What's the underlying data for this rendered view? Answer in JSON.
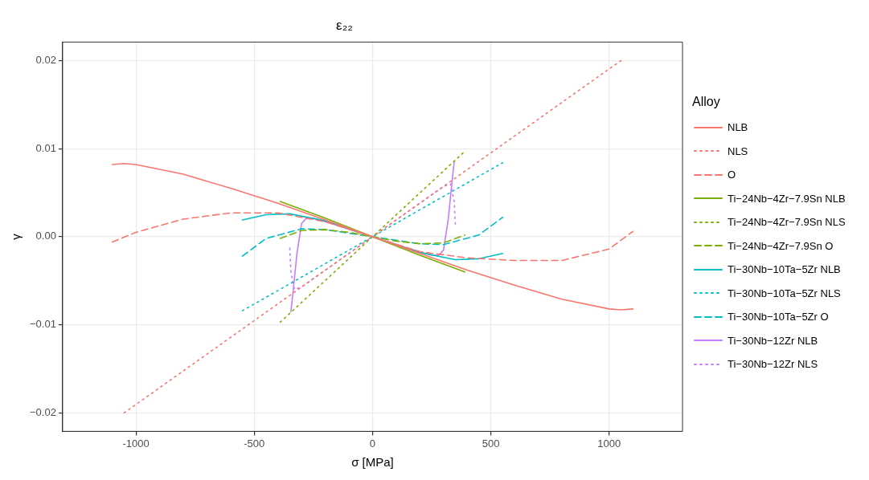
{
  "chart_data": {
    "type": "line",
    "title": "ε₂₂",
    "xlabel": "σ [MPa]",
    "ylabel": "γ",
    "legend_title": "Alloy",
    "legend": "right",
    "grid": true,
    "marker": "none",
    "xlim": [
      -1310,
      1310
    ],
    "xticks": [
      -1000,
      -500,
      0,
      500,
      1000
    ],
    "ylim": [
      -0.0221,
      0.0221
    ],
    "yticks": [
      {
        "value": -0.02,
        "label": "−0.02"
      },
      {
        "value": -0.01,
        "label": "−0.01"
      },
      {
        "value": 0,
        "label": "0.00"
      },
      {
        "value": 0.01,
        "label": "0.01"
      },
      {
        "value": 0.02,
        "label": "0.02"
      }
    ],
    "series": [
      {
        "name": "NLB",
        "color": "#f8766d",
        "line_style": "solid",
        "x": [
          -1100,
          -1050,
          -1000,
          -800,
          -600,
          -400,
          -200,
          0,
          200,
          400,
          600,
          800,
          1000,
          1050,
          1100
        ],
        "values": [
          0.0082,
          0.0083,
          0.0082,
          0.0071,
          0.0055,
          0.0038,
          0.0019,
          0,
          -0.0019,
          -0.0038,
          -0.0055,
          -0.0071,
          -0.0082,
          -0.0083,
          -0.0082
        ]
      },
      {
        "name": "NLS",
        "color": "#f8766d",
        "line_style": "dotted",
        "x": [
          -1050,
          0,
          1050
        ],
        "values": [
          -0.02,
          0,
          0.02
        ]
      },
      {
        "name": "O",
        "color": "#f8766d",
        "line_style": "dashed",
        "x": [
          -1100,
          -1000,
          -800,
          -600,
          -400,
          -200,
          0,
          200,
          400,
          600,
          800,
          1000,
          1100
        ],
        "values": [
          -0.0006,
          0.0005,
          0.002,
          0.0027,
          0.0027,
          0.0017,
          0,
          -0.0017,
          -0.0024,
          -0.0027,
          -0.0027,
          -0.0014,
          0.0006
        ]
      },
      {
        "name": "Ti−24Nb−4Zr−7.9Sn NLB",
        "color": "#7cae00",
        "line_style": "solid",
        "x": [
          -390,
          -200,
          0,
          200,
          390
        ],
        "values": [
          0.004,
          0.0021,
          0,
          -0.0021,
          -0.004
        ]
      },
      {
        "name": "Ti−24Nb−4Zr−7.9Sn NLS",
        "color": "#7cae00",
        "line_style": "dotted",
        "x": [
          -390,
          0,
          390
        ],
        "values": [
          -0.0097,
          0,
          0.0097
        ]
      },
      {
        "name": "Ti−24Nb−4Zr−7.9Sn O",
        "color": "#7cae00",
        "line_style": "dashed",
        "x": [
          -390,
          -300,
          -200,
          -100,
          0,
          100,
          200,
          300,
          390
        ],
        "values": [
          -0.0002,
          0.0007,
          0.0008,
          0.0005,
          0,
          -0.0005,
          -0.0008,
          -0.0007,
          0.0002
        ]
      },
      {
        "name": "Ti−30Nb−10Ta−5Zr NLB",
        "color": "#00bfc4",
        "line_style": "solid",
        "x": [
          -550,
          -450,
          -350,
          -200,
          0,
          200,
          350,
          450,
          550
        ],
        "values": [
          0.0019,
          0.0025,
          0.0026,
          0.0018,
          0,
          -0.0018,
          -0.0026,
          -0.0025,
          -0.0019
        ]
      },
      {
        "name": "Ti−30Nb−10Ta−5Zr NLS",
        "color": "#00bfc4",
        "line_style": "dotted",
        "x": [
          -550,
          0,
          550
        ],
        "values": [
          -0.0084,
          0,
          0.0084
        ]
      },
      {
        "name": "Ti−30Nb−10Ta−5Zr O",
        "color": "#00bfc4",
        "line_style": "dashed",
        "x": [
          -550,
          -450,
          -300,
          -200,
          0,
          200,
          300,
          450,
          550
        ],
        "values": [
          -0.0022,
          -0.0002,
          0.0009,
          0.0008,
          0,
          -0.0008,
          -0.0009,
          0.0002,
          0.0022
        ]
      },
      {
        "name": "Ti−30Nb−12Zr NLB",
        "color": "#c77cff",
        "line_style": "solid",
        "x": [
          -345,
          -335,
          -320,
          -300,
          -280,
          -250,
          -150,
          0,
          150,
          250,
          280,
          300,
          320,
          335,
          345
        ],
        "values": [
          -0.0085,
          -0.006,
          -0.002,
          0.0015,
          0.0021,
          0.0021,
          0.0013,
          0,
          -0.0013,
          -0.0021,
          -0.0021,
          -0.0015,
          0.002,
          0.006,
          0.0085
        ]
      },
      {
        "name": "Ti−30Nb−12Zr NLS",
        "color": "#c77cff",
        "line_style": "dotted",
        "x": [
          -350,
          -345,
          -330,
          -300,
          0,
          300,
          330,
          345,
          350
        ],
        "values": [
          -0.0013,
          -0.004,
          -0.006,
          -0.0057,
          0,
          0.0057,
          0.006,
          0.004,
          0.0013
        ]
      }
    ]
  }
}
